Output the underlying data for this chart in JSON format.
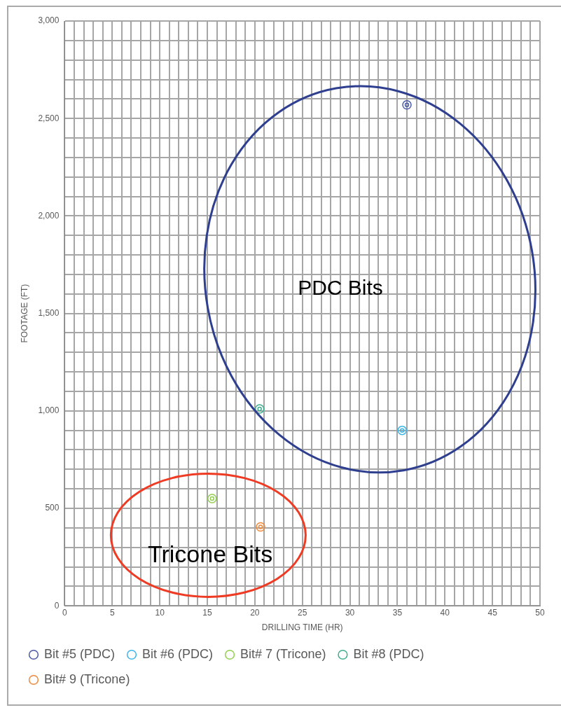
{
  "chart_data": {
    "type": "scatter",
    "xlabel": "DRILLING TIME (HR)",
    "ylabel": "FOOTAGE (FT)",
    "series": [
      {
        "name": "Bit #5 (PDC)",
        "color": "#4a5aa8",
        "x": [
          36
        ],
        "values": [
          2570
        ]
      },
      {
        "name": "Bit #6 (PDC)",
        "color": "#3fb6e8",
        "x": [
          35.5
        ],
        "values": [
          900
        ]
      },
      {
        "name": "Bit# 7 (Tricone)",
        "color": "#92d050",
        "x": [
          15.5
        ],
        "values": [
          550
        ]
      },
      {
        "name": "Bit #8 (PDC)",
        "color": "#3fae8f",
        "x": [
          20.5
        ],
        "values": [
          1010
        ]
      },
      {
        "name": "Bit# 9 (Tricone)",
        "color": "#f0883a",
        "x": [
          20.6
        ],
        "values": [
          405
        ]
      }
    ],
    "xlim": [
      0,
      50
    ],
    "xticks": [
      0,
      {
        "value": 1,
        "label": null
      },
      {
        "value": 2,
        "label": null
      },
      {
        "value": 3,
        "label": null
      },
      {
        "value": 4,
        "label": null
      },
      5,
      {
        "value": 6,
        "label": null
      },
      {
        "value": 7,
        "label": null
      },
      {
        "value": 8,
        "label": null
      },
      {
        "value": 9,
        "label": null
      },
      10,
      {
        "value": 11,
        "label": null
      },
      {
        "value": 12,
        "label": null
      },
      {
        "value": 13,
        "label": null
      },
      {
        "value": 14,
        "label": null
      },
      15,
      {
        "value": 16,
        "label": null
      },
      {
        "value": 17,
        "label": null
      },
      {
        "value": 18,
        "label": null
      },
      {
        "value": 19,
        "label": null
      },
      20,
      {
        "value": 21,
        "label": null
      },
      {
        "value": 22,
        "label": null
      },
      {
        "value": 23,
        "label": null
      },
      {
        "value": 24,
        "label": null
      },
      25,
      {
        "value": 26,
        "label": null
      },
      {
        "value": 27,
        "label": null
      },
      {
        "value": 28,
        "label": null
      },
      {
        "value": 29,
        "label": null
      },
      30,
      {
        "value": 31,
        "label": null
      },
      {
        "value": 32,
        "label": null
      },
      {
        "value": 33,
        "label": null
      },
      {
        "value": 34,
        "label": null
      },
      35,
      {
        "value": 36,
        "label": null
      },
      {
        "value": 37,
        "label": null
      },
      {
        "value": 38,
        "label": null
      },
      {
        "value": 39,
        "label": null
      },
      40,
      {
        "value": 41,
        "label": null
      },
      {
        "value": 42,
        "label": null
      },
      {
        "value": 43,
        "label": null
      },
      {
        "value": 44,
        "label": null
      },
      45,
      {
        "value": 46,
        "label": null
      },
      {
        "value": 47,
        "label": null
      },
      {
        "value": 48,
        "label": null
      },
      {
        "value": 49,
        "label": null
      },
      50
    ],
    "ylim": [
      0,
      3000
    ],
    "yticks": [
      0,
      {
        "value": 100,
        "label": null
      },
      {
        "value": 200,
        "label": null
      },
      {
        "value": 300,
        "label": null
      },
      {
        "value": 400,
        "label": null
      },
      500,
      {
        "value": 600,
        "label": null
      },
      {
        "value": 700,
        "label": null
      },
      {
        "value": 800,
        "label": null
      },
      {
        "value": 900,
        "label": null
      },
      {
        "value": 1000,
        "label": "1,000"
      },
      {
        "value": 1100,
        "label": null
      },
      {
        "value": 1200,
        "label": null
      },
      {
        "value": 1300,
        "label": null
      },
      {
        "value": 1400,
        "label": null
      },
      {
        "value": 1500,
        "label": "1,500"
      },
      {
        "value": 1600,
        "label": null
      },
      {
        "value": 1700,
        "label": null
      },
      {
        "value": 1800,
        "label": null
      },
      {
        "value": 1900,
        "label": null
      },
      {
        "value": 2000,
        "label": "2,000"
      },
      {
        "value": 2100,
        "label": null
      },
      {
        "value": 2200,
        "label": null
      },
      {
        "value": 2300,
        "label": null
      },
      {
        "value": 2400,
        "label": null
      },
      {
        "value": 2500,
        "label": "2,500"
      },
      {
        "value": 2600,
        "label": null
      },
      {
        "value": 2700,
        "label": null
      },
      {
        "value": 2800,
        "label": null
      },
      {
        "value": 2900,
        "label": null
      },
      {
        "value": 3000,
        "label": "3,000"
      }
    ],
    "grid": true,
    "legend": "bottom",
    "marker": "circle",
    "annotations": [
      "PDC Bits",
      "Tricone Bits"
    ]
  }
}
